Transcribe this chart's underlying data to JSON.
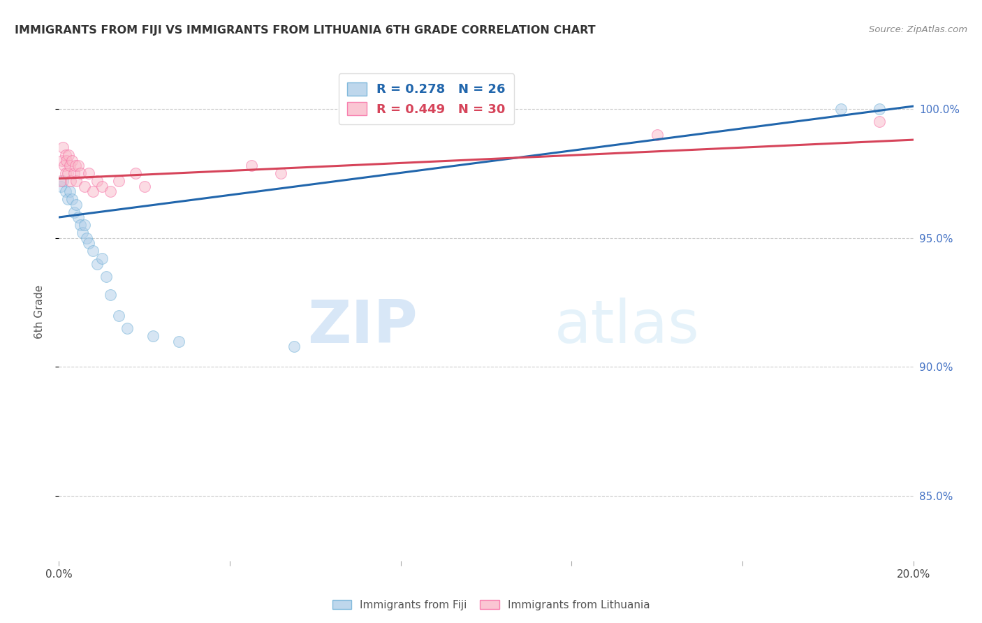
{
  "title": "IMMIGRANTS FROM FIJI VS IMMIGRANTS FROM LITHUANIA 6TH GRADE CORRELATION CHART",
  "source": "Source: ZipAtlas.com",
  "ylabel": "6th Grade",
  "x_min": 0.0,
  "x_max": 20.0,
  "y_min": 82.5,
  "y_max": 101.8,
  "yticks": [
    85.0,
    90.0,
    95.0,
    100.0
  ],
  "ytick_labels": [
    "85.0%",
    "90.0%",
    "95.0%",
    "100.0%"
  ],
  "xticks": [
    0.0,
    4.0,
    8.0,
    12.0,
    16.0,
    20.0
  ],
  "xtick_labels": [
    "0.0%",
    "",
    "",
    "",
    "",
    "20.0%"
  ],
  "fiji_color": "#aecde8",
  "fiji_color_edge": "#6baed6",
  "lithuania_color": "#f9b8c8",
  "lithuania_color_edge": "#f768a1",
  "trend_fiji_color": "#2166ac",
  "trend_lith_color": "#d6445a",
  "fiji_R": 0.278,
  "fiji_N": 26,
  "lith_R": 0.449,
  "lith_N": 30,
  "fiji_scatter_x": [
    0.05,
    0.1,
    0.15,
    0.2,
    0.25,
    0.3,
    0.35,
    0.4,
    0.45,
    0.5,
    0.55,
    0.6,
    0.65,
    0.7,
    0.8,
    0.9,
    1.0,
    1.1,
    1.2,
    1.4,
    1.6,
    2.2,
    2.8,
    5.5,
    18.3,
    19.2
  ],
  "fiji_scatter_y": [
    97.0,
    97.2,
    96.8,
    96.5,
    96.8,
    96.5,
    96.0,
    96.3,
    95.8,
    95.5,
    95.2,
    95.5,
    95.0,
    94.8,
    94.5,
    94.0,
    94.2,
    93.5,
    92.8,
    92.0,
    91.5,
    91.2,
    91.0,
    90.8,
    100.0,
    100.0
  ],
  "lith_scatter_x": [
    0.05,
    0.08,
    0.1,
    0.12,
    0.15,
    0.15,
    0.18,
    0.2,
    0.22,
    0.25,
    0.28,
    0.3,
    0.35,
    0.38,
    0.4,
    0.45,
    0.5,
    0.6,
    0.7,
    0.8,
    0.9,
    1.0,
    1.2,
    1.4,
    1.8,
    2.0,
    4.5,
    5.2,
    14.0,
    19.2
  ],
  "lith_scatter_y": [
    97.2,
    98.0,
    98.5,
    97.8,
    98.2,
    97.5,
    98.0,
    97.5,
    98.2,
    97.8,
    97.2,
    98.0,
    97.5,
    97.8,
    97.2,
    97.8,
    97.5,
    97.0,
    97.5,
    96.8,
    97.2,
    97.0,
    96.8,
    97.2,
    97.5,
    97.0,
    97.8,
    97.5,
    99.0,
    99.5
  ],
  "fiji_trend_x0": 0.0,
  "fiji_trend_y0": 95.8,
  "fiji_trend_x1": 20.0,
  "fiji_trend_y1": 100.1,
  "lith_trend_x0": 0.0,
  "lith_trend_y0": 97.3,
  "lith_trend_x1": 20.0,
  "lith_trend_y1": 98.8,
  "watermark_zip": "ZIP",
  "watermark_atlas": "atlas",
  "marker_size": 130,
  "alpha": 0.5,
  "bg_color": "#ffffff",
  "grid_color": "#cccccc",
  "right_axis_color": "#4472c4",
  "title_color": "#333333",
  "axis_label_color": "#555555"
}
